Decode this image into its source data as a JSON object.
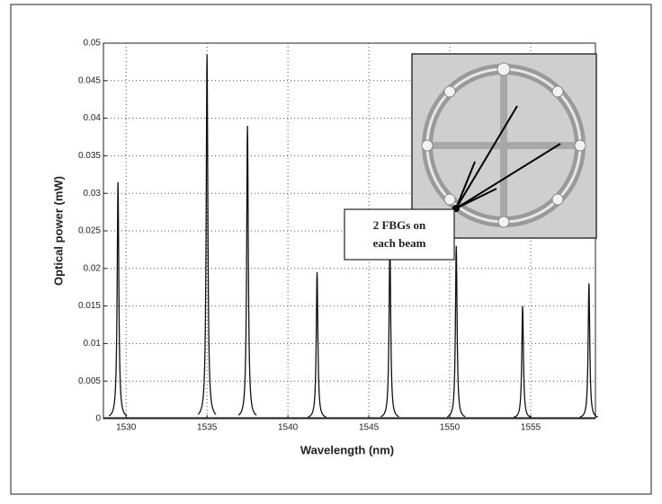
{
  "chart_data": {
    "type": "peaks",
    "xlabel": "Wavelength (nm)",
    "ylabel": "Optical power  (mW)",
    "x": [
      1529.5,
      1535.0,
      1537.5,
      1541.8,
      1546.3,
      1550.4,
      1554.5,
      1558.6
    ],
    "values": [
      0.0315,
      0.0485,
      0.039,
      0.0195,
      0.0235,
      0.023,
      0.015,
      0.018
    ],
    "color": "#111111",
    "xlim": [
      1528.6,
      1559
    ],
    "ylim": [
      0,
      0.05
    ],
    "xticks": [
      1530,
      1535,
      1540,
      1545,
      1550,
      1555
    ],
    "yticks": [
      0,
      0.005,
      0.01,
      0.015,
      0.02,
      0.025,
      0.03,
      0.035,
      0.04,
      0.045,
      0.05
    ],
    "grid": true,
    "annotation": [
      "2 FBGs on",
      "each beam"
    ]
  }
}
